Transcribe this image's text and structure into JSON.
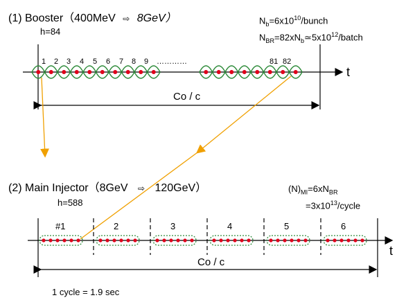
{
  "booster": {
    "title_prefix": "(1) Booster（400MeV",
    "title_arrow": "⇨",
    "title_suffix": "8GeV）",
    "harmonic": "h=84",
    "nb_text": "N_b=6x10^10/bunch",
    "nbr_text": "N_BR=82xN_b≃5x10^12/batch",
    "bunch_labels": [
      "1",
      "2",
      "3",
      "4",
      "5",
      "6",
      "7",
      "8",
      "9"
    ],
    "bunch_labels_end": [
      "81",
      "82"
    ],
    "ellipsis": "…………",
    "axis_label": "t",
    "period_label": "Co / c"
  },
  "main_injector": {
    "title_prefix": "(2) Main Injector（8GeV",
    "title_arrow": "⇨",
    "title_suffix": "120GeV）",
    "harmonic": "h=588",
    "n_mi_text": "(N)_MI=6xN_BR",
    "n_mi_value": "=3x10^13/cycle",
    "batch_labels": [
      "#1",
      "2",
      "3",
      "4",
      "5",
      "6"
    ],
    "axis_label": "t",
    "period_label": "Co / c",
    "cycle_text": "1 cycle = 1.9 sec"
  },
  "colors": {
    "wave": "#2e8b3a",
    "bunch": "#e0001a",
    "transfer_arrow": "#f0a000",
    "batch_outline": "#2e8b3a",
    "axis": "#000000"
  }
}
